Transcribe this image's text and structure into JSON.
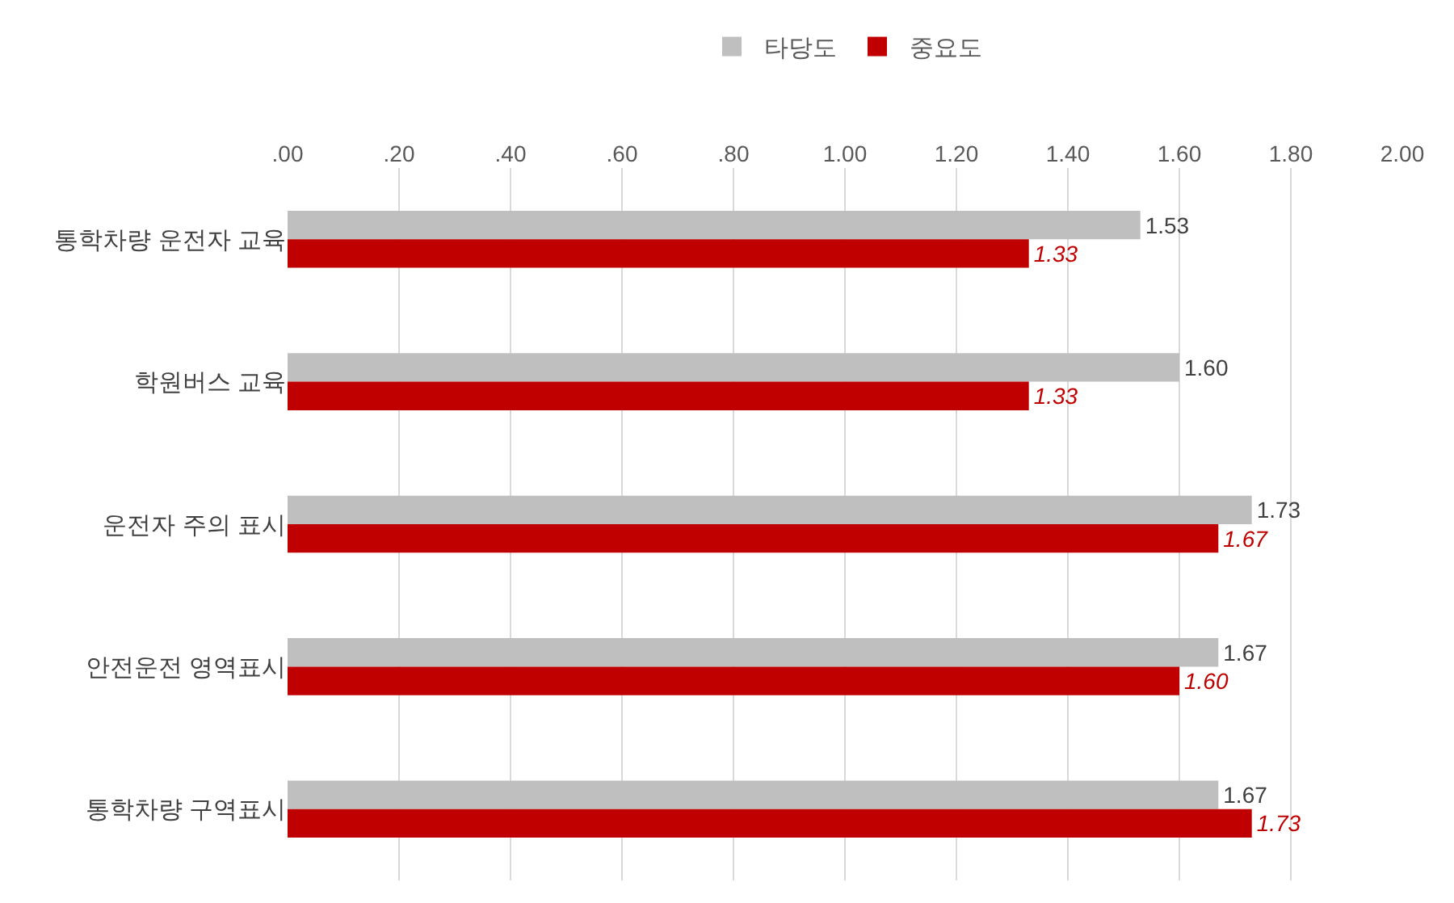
{
  "chart_data": {
    "type": "bar",
    "orientation": "horizontal",
    "categories": [
      "통학차량 운전자 교육",
      "학원버스 교육",
      "운전자 주의 표시",
      "안전운전 영역표시",
      "통학차량 구역표시"
    ],
    "series": [
      {
        "name": "타당도",
        "color": "#bfbfbf",
        "values": [
          1.53,
          1.6,
          1.73,
          1.67,
          1.67
        ],
        "value_labels": [
          "1.53",
          "1.60",
          "1.73",
          "1.67",
          "1.67"
        ]
      },
      {
        "name": "중요도",
        "color": "#c00000",
        "values": [
          1.33,
          1.33,
          1.67,
          1.6,
          1.73
        ],
        "value_labels": [
          "1.33",
          "1.33",
          "1.67",
          "1.60",
          "1.73"
        ]
      }
    ],
    "xlim": [
      0,
      2.0
    ],
    "xticks": [
      {
        "value": 0,
        "label": ".00"
      },
      {
        "value": 0.2,
        "label": ".20"
      },
      {
        "value": 0.4,
        "label": ".40"
      },
      {
        "value": 0.6,
        "label": ".60"
      },
      {
        "value": 0.8,
        "label": ".80"
      },
      {
        "value": 1.0,
        "label": "1.00"
      },
      {
        "value": 1.2,
        "label": "1.20"
      },
      {
        "value": 1.4,
        "label": "1.40"
      },
      {
        "value": 1.6,
        "label": "1.60"
      },
      {
        "value": 1.8,
        "label": "1.80"
      },
      {
        "value": 2.0,
        "label": "2.00"
      }
    ],
    "grid": "x",
    "legend": "top"
  }
}
